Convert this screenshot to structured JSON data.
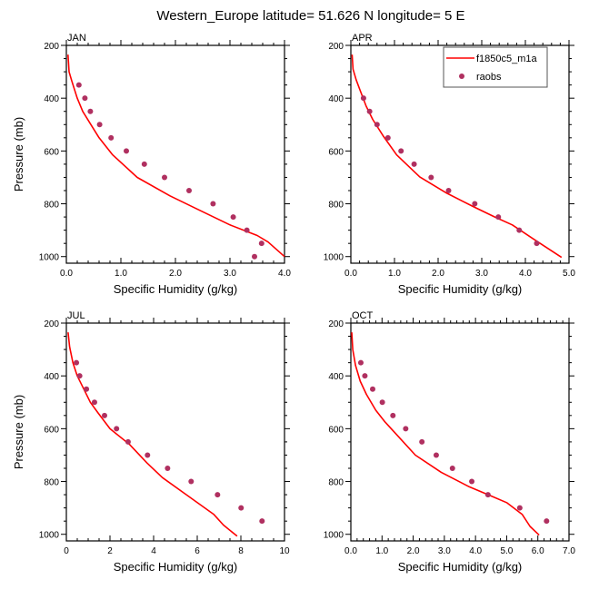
{
  "chart_data": {
    "type": "line",
    "title": "Western_Europe  latitude= 51.626 N longitude= 5 E",
    "legend": {
      "placement": "top-right of APR panel",
      "entries": [
        {
          "label": "f1850c5_m1a",
          "kind": "line",
          "color": "#ff0000"
        },
        {
          "label": "raobs",
          "kind": "marker",
          "color": "#b03060"
        }
      ]
    },
    "colors": {
      "model": "#ff0000",
      "obs": "#b03060",
      "axis": "#000000"
    },
    "panels": [
      {
        "label": "JAN",
        "xlabel": "Specific Humidity (g/kg)",
        "ylabel": "Pressure (mb)",
        "xlim": [
          0,
          4.0
        ],
        "ylim": [
          200,
          1025
        ],
        "xticks": [
          "0.0",
          "1.0",
          "2.0",
          "3.0",
          "4.0"
        ],
        "xtick_values": [
          0,
          1,
          2,
          3,
          4
        ],
        "xminor_step": 0.2,
        "yticks": [
          "200",
          "400",
          "600",
          "800",
          "1000"
        ],
        "ytick_values": [
          200,
          400,
          600,
          800,
          1000
        ],
        "yminor_step": 50,
        "show_ylabel": true,
        "model": {
          "name": "f1850c5_m1a",
          "x": [
            0.03,
            0.05,
            0.1,
            0.2,
            0.3,
            0.45,
            0.6,
            0.85,
            1.3,
            1.9,
            2.5,
            3.0,
            3.5,
            3.7,
            4.0
          ],
          "y": [
            235,
            300,
            335,
            400,
            450,
            500,
            550,
            615,
            700,
            770,
            830,
            880,
            920,
            945,
            1000
          ]
        },
        "obs": {
          "name": "raobs",
          "x": [
            0.23,
            0.34,
            0.44,
            0.61,
            0.82,
            1.1,
            1.43,
            1.8,
            2.25,
            2.69,
            3.06,
            3.31,
            3.58,
            3.45
          ],
          "y": [
            350,
            400,
            450,
            500,
            550,
            600,
            650,
            700,
            750,
            800,
            850,
            900,
            950,
            1000
          ]
        }
      },
      {
        "label": "APR",
        "xlabel": "Specific Humidity (g/kg)",
        "ylabel": "",
        "xlim": [
          0,
          5.0
        ],
        "ylim": [
          200,
          1025
        ],
        "xticks": [
          "0.0",
          "1.0",
          "2.0",
          "3.0",
          "4.0",
          "5.0"
        ],
        "xtick_values": [
          0,
          1,
          2,
          3,
          4,
          5
        ],
        "xminor_step": 0.2,
        "yticks": [
          "200",
          "400",
          "600",
          "800",
          "1000"
        ],
        "ytick_values": [
          200,
          400,
          600,
          800,
          1000
        ],
        "yminor_step": 50,
        "show_ylabel": true,
        "show_legend": true,
        "model": {
          "name": "f1850c5_m1a",
          "x": [
            0.03,
            0.05,
            0.12,
            0.2,
            0.35,
            0.5,
            0.75,
            1.05,
            1.58,
            2.2,
            2.8,
            3.3,
            3.7,
            4.2,
            4.83
          ],
          "y": [
            235,
            290,
            330,
            365,
            430,
            480,
            545,
            615,
            698,
            760,
            810,
            850,
            880,
            935,
            1003
          ]
        },
        "obs": {
          "name": "raobs",
          "x": [
            0.29,
            0.43,
            0.6,
            0.85,
            1.15,
            1.45,
            1.84,
            2.24,
            2.84,
            3.38,
            3.86,
            4.26
          ],
          "y": [
            400,
            450,
            500,
            550,
            600,
            650,
            700,
            750,
            800,
            850,
            900,
            950
          ]
        }
      },
      {
        "label": "JUL",
        "xlabel": "Specific Humidity (g/kg)",
        "ylabel": "Pressure (mb)",
        "xlim": [
          0,
          10
        ],
        "ylim": [
          200,
          1025
        ],
        "xticks": [
          "0",
          "2",
          "4",
          "6",
          "8",
          "10"
        ],
        "xtick_values": [
          0,
          2,
          4,
          6,
          8,
          10
        ],
        "xminor_step": 0.5,
        "yticks": [
          "200",
          "400",
          "600",
          "800",
          "1000"
        ],
        "ytick_values": [
          200,
          400,
          600,
          800,
          1000
        ],
        "yminor_step": 50,
        "show_ylabel": true,
        "model": {
          "name": "f1850c5_m1a",
          "x": [
            0.08,
            0.15,
            0.3,
            0.5,
            0.8,
            1.1,
            1.45,
            2.0,
            2.9,
            3.7,
            4.4,
            5.5,
            6.75,
            7.2,
            7.83
          ],
          "y": [
            235,
            290,
            350,
            400,
            450,
            500,
            540,
            600,
            660,
            730,
            785,
            850,
            924,
            965,
            1007
          ]
        },
        "obs": {
          "name": "raobs",
          "x": [
            0.46,
            0.61,
            0.92,
            1.29,
            1.75,
            2.3,
            2.83,
            3.72,
            4.64,
            5.72,
            6.93,
            8.01,
            8.97
          ],
          "y": [
            350,
            400,
            450,
            500,
            550,
            600,
            650,
            700,
            750,
            800,
            850,
            900,
            950
          ]
        }
      },
      {
        "label": "OCT",
        "xlabel": "Specific Humidity (g/kg)",
        "ylabel": "",
        "xlim": [
          0,
          7.0
        ],
        "ylim": [
          200,
          1025
        ],
        "xticks": [
          "0.0",
          "1.0",
          "2.0",
          "3.0",
          "4.0",
          "5.0",
          "6.0",
          "7.0"
        ],
        "xtick_values": [
          0,
          1,
          2,
          3,
          4,
          5,
          6,
          7
        ],
        "xminor_step": 0.2,
        "yticks": [
          "200",
          "400",
          "600",
          "800",
          "1000"
        ],
        "ytick_values": [
          200,
          400,
          600,
          800,
          1000
        ],
        "yminor_step": 50,
        "show_ylabel": true,
        "model": {
          "name": "f1850c5_m1a",
          "x": [
            0.03,
            0.06,
            0.15,
            0.3,
            0.5,
            0.8,
            1.1,
            1.45,
            2.07,
            2.9,
            3.8,
            4.5,
            5.0,
            5.5,
            5.75,
            6.04
          ],
          "y": [
            235,
            300,
            360,
            420,
            470,
            530,
            575,
            620,
            700,
            765,
            820,
            855,
            880,
            925,
            970,
            1003
          ]
        },
        "obs": {
          "name": "raobs",
          "x": [
            0.32,
            0.45,
            0.7,
            1.01,
            1.35,
            1.76,
            2.28,
            2.74,
            3.26,
            3.88,
            4.4,
            5.42,
            6.28
          ],
          "y": [
            350,
            400,
            450,
            500,
            550,
            600,
            650,
            700,
            750,
            800,
            850,
            900,
            950
          ]
        }
      }
    ]
  }
}
